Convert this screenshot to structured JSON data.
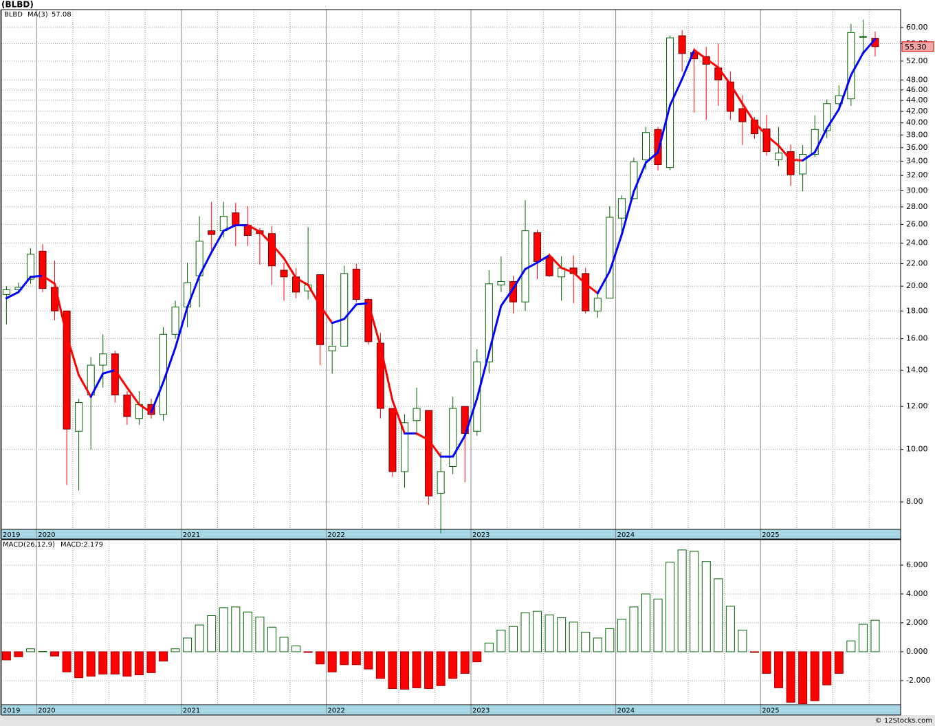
{
  "chart_data": [
    {
      "type": "candlestick",
      "title": "(BLBD)",
      "categories": [
        "2019",
        null,
        null,
        "2020",
        null,
        null,
        null,
        null,
        null,
        null,
        null,
        null,
        null,
        null,
        null,
        "2021",
        null,
        null,
        null,
        null,
        null,
        null,
        null,
        null,
        null,
        null,
        null,
        "2022",
        null,
        null,
        null,
        null,
        null,
        null,
        null,
        null,
        null,
        null,
        null,
        "2023",
        null,
        null,
        null,
        null,
        null,
        null,
        null,
        null,
        null,
        null,
        null,
        "2024",
        null,
        null,
        null,
        null,
        null,
        null,
        null,
        null,
        null,
        null,
        null,
        "2025",
        null,
        null,
        null,
        null,
        null,
        null,
        null,
        null,
        null
      ],
      "series": [
        {
          "name": "BLBD",
          "up_color": "#006400",
          "down_color": "#ff0000",
          "open": [
            19.3,
            19.7,
            20.6,
            23.2,
            19.9,
            18.0,
            10.8,
            12.6,
            14.3,
            15.0,
            12.6,
            11.4,
            12.1,
            11.6,
            16.3,
            18.3,
            20.9,
            25.3,
            25.3,
            27.3,
            25.9,
            25.3,
            25.0,
            21.4,
            20.8,
            19.6,
            21.0,
            15.2,
            15.5,
            21.5,
            18.9,
            15.7,
            11.9,
            9.1,
            11.3,
            11.8,
            8.3,
            9.3,
            12.0,
            10.8,
            14.5,
            20.1,
            20.4,
            18.7,
            25.1,
            22.6,
            20.8,
            21.6,
            21.1,
            18.0,
            19.0,
            26.7,
            29.0,
            34.2,
            38.9,
            33.1,
            57.9,
            53.9,
            53.0,
            50.5,
            47.6,
            42.5,
            40.5,
            39.0,
            34.2,
            35.4,
            32.2,
            35.0,
            38.7,
            43.4,
            44.3,
            57.6,
            57.3
          ],
          "high": [
            20.0,
            20.3,
            23.5,
            23.9,
            22.3,
            18.0,
            12.4,
            14.8,
            16.3,
            15.2,
            12.8,
            12.8,
            12.4,
            16.8,
            18.8,
            22.1,
            26.9,
            28.6,
            28.6,
            28.5,
            28.1,
            25.6,
            25.8,
            22.1,
            21.6,
            25.7,
            21.0,
            17.0,
            21.8,
            22.0,
            19.0,
            16.4,
            11.9,
            11.6,
            13.0,
            11.8,
            9.9,
            12.5,
            12.0,
            15.3,
            21.4,
            22.7,
            20.9,
            28.8,
            25.4,
            23.0,
            22.7,
            22.8,
            21.6,
            19.6,
            28.1,
            29.4,
            34.5,
            39.3,
            39.3,
            58.0,
            59.3,
            55.0,
            55.3,
            56.0,
            49.8,
            45.0,
            41.0,
            41.4,
            39.3,
            36.5,
            36.4,
            41.3,
            44.2,
            46.9,
            60.9,
            62.0,
            59.0
          ],
          "low": [
            17.0,
            19.4,
            20.2,
            19.5,
            17.3,
            8.6,
            8.4,
            10.0,
            13.0,
            12.2,
            11.1,
            11.1,
            11.4,
            11.3,
            16.0,
            16.8,
            18.3,
            22.9,
            24.6,
            23.7,
            23.7,
            21.9,
            20.1,
            18.8,
            19.0,
            18.9,
            14.3,
            13.8,
            15.5,
            18.7,
            15.6,
            11.4,
            8.9,
            8.5,
            10.6,
            7.9,
            7.0,
            9.0,
            8.7,
            10.6,
            13.8,
            19.5,
            17.8,
            18.0,
            20.6,
            20.8,
            18.8,
            18.6,
            17.8,
            17.5,
            19.0,
            25.0,
            28.9,
            32.8,
            32.7,
            32.7,
            49.7,
            41.8,
            40.5,
            43.0,
            40.5,
            36.4,
            37.4,
            34.8,
            33.3,
            30.6,
            29.9,
            34.6,
            37.5,
            42.9,
            43.0,
            53.9,
            53.0
          ],
          "close": [
            19.7,
            19.9,
            22.9,
            19.8,
            18.0,
            10.9,
            12.2,
            14.3,
            15.0,
            12.6,
            11.5,
            12.1,
            11.6,
            16.3,
            18.3,
            20.3,
            24.2,
            24.9,
            26.9,
            25.9,
            24.8,
            25.0,
            21.8,
            20.8,
            19.5,
            20.1,
            15.6,
            15.5,
            21.1,
            18.9,
            15.8,
            11.9,
            9.1,
            11.2,
            11.9,
            8.2,
            9.1,
            11.9,
            10.7,
            14.5,
            20.2,
            20.4,
            18.7,
            25.3,
            22.2,
            20.9,
            21.6,
            21.1,
            18.0,
            19.0,
            26.8,
            29.0,
            33.9,
            38.4,
            33.5,
            57.4,
            53.7,
            52.5,
            51.3,
            48.0,
            42.0,
            40.2,
            38.2,
            35.4,
            35.2,
            32.1,
            35.0,
            38.9,
            43.4,
            44.9,
            58.7,
            57.7,
            55.3
          ]
        },
        {
          "name": "MA(3)",
          "up_color": "#0000ff",
          "down_color": "#ff0000",
          "values": [
            19.0,
            19.5,
            20.8,
            20.9,
            20.2,
            16.2,
            13.7,
            12.5,
            13.8,
            14.0,
            13.0,
            12.1,
            11.7,
            13.3,
            15.4,
            18.3,
            20.9,
            23.1,
            25.3,
            25.9,
            25.9,
            25.2,
            23.9,
            22.5,
            20.7,
            20.1,
            18.4,
            17.1,
            17.4,
            18.5,
            18.6,
            15.5,
            12.3,
            10.7,
            10.7,
            10.4,
            9.7,
            9.7,
            10.6,
            12.4,
            15.1,
            18.4,
            19.8,
            21.5,
            22.1,
            22.8,
            21.6,
            21.2,
            20.2,
            19.4,
            21.3,
            24.9,
            29.9,
            33.8,
            35.3,
            43.1,
            48.2,
            54.5,
            52.5,
            50.6,
            47.1,
            43.4,
            40.1,
            37.9,
            36.3,
            34.2,
            34.1,
            35.3,
            39.1,
            42.4,
            49.0,
            53.8,
            57.08
          ]
        }
      ],
      "ylim": [
        7.12,
        64.7
      ],
      "log": true,
      "grid": true,
      "yticks": [
        {
          "value": 8,
          "label": "8.00"
        },
        {
          "value": 10,
          "label": "10.00"
        },
        {
          "value": 12,
          "label": "12.00"
        },
        {
          "value": 14,
          "label": "14.00"
        },
        {
          "value": 16,
          "label": "16.00"
        },
        {
          "value": 18,
          "label": "18.00"
        },
        {
          "value": 20,
          "label": "20.00"
        },
        {
          "value": 22,
          "label": "22.00"
        },
        {
          "value": 24,
          "label": "24.00"
        },
        {
          "value": 26,
          "label": "26.00"
        },
        {
          "value": 28,
          "label": "28.00"
        },
        {
          "value": 30,
          "label": "30.00"
        },
        {
          "value": 32,
          "label": "32.00"
        },
        {
          "value": 34,
          "label": "34.00"
        },
        {
          "value": 36,
          "label": "36.00"
        },
        {
          "value": 38,
          "label": "38.00"
        },
        {
          "value": 40,
          "label": "40.00"
        },
        {
          "value": 42,
          "label": "42.00"
        },
        {
          "value": 44,
          "label": "44.00"
        },
        {
          "value": 46,
          "label": "46.00"
        },
        {
          "value": 48,
          "label": "48.00"
        },
        {
          "value": 52,
          "label": "52.00"
        },
        {
          "value": 56,
          "label": "56.00"
        },
        {
          "value": 60,
          "label": "60.00"
        }
      ],
      "price_tag": {
        "value": 55.3,
        "label": "55.30"
      }
    },
    {
      "type": "bar",
      "categories": [
        "2019",
        null,
        null,
        "2020",
        null,
        null,
        null,
        null,
        null,
        null,
        null,
        null,
        null,
        null,
        null,
        "2021",
        null,
        null,
        null,
        null,
        null,
        null,
        null,
        null,
        null,
        null,
        null,
        "2022",
        null,
        null,
        null,
        null,
        null,
        null,
        null,
        null,
        null,
        null,
        null,
        "2023",
        null,
        null,
        null,
        null,
        null,
        null,
        null,
        null,
        null,
        null,
        null,
        "2024",
        null,
        null,
        null,
        null,
        null,
        null,
        null,
        null,
        null,
        null,
        null,
        "2025",
        null,
        null,
        null,
        null,
        null,
        null,
        null,
        null,
        null
      ],
      "series": [
        {
          "name": "MACD(26,12,9)",
          "value_prefix": "MACD:",
          "up_color": "#006400",
          "down_color": "#ff0000",
          "values": [
            -0.57,
            -0.35,
            0.2,
            0.02,
            -0.3,
            -1.4,
            -1.8,
            -1.7,
            -1.55,
            -1.55,
            -1.7,
            -1.6,
            -1.45,
            -0.65,
            0.2,
            0.95,
            1.85,
            2.5,
            3.05,
            3.1,
            2.75,
            2.4,
            1.7,
            1.0,
            0.4,
            -0.05,
            -0.85,
            -1.4,
            -0.9,
            -0.9,
            -1.2,
            -1.85,
            -2.55,
            -2.6,
            -2.5,
            -2.55,
            -2.35,
            -1.85,
            -1.5,
            -0.7,
            0.6,
            1.5,
            1.75,
            2.7,
            2.8,
            2.55,
            2.35,
            2.05,
            1.35,
            0.95,
            1.6,
            2.25,
            3.1,
            4.0,
            3.65,
            6.2,
            7.05,
            6.95,
            6.25,
            5.05,
            3.15,
            1.5,
            -0.05,
            -1.5,
            -2.5,
            -3.5,
            -3.6,
            -3.4,
            -2.3,
            -1.5,
            0.75,
            1.9,
            2.179
          ]
        }
      ],
      "ylim": [
        -3.67,
        7.76
      ],
      "grid": true,
      "yticks": [
        {
          "value": -2,
          "label": "-2.000"
        },
        {
          "value": 0,
          "label": "0.000"
        },
        {
          "value": 2,
          "label": "2.000"
        },
        {
          "value": 4,
          "label": "4.000"
        },
        {
          "value": 6,
          "label": "6.000"
        }
      ]
    }
  ],
  "footer": "© 12Stocks.com"
}
